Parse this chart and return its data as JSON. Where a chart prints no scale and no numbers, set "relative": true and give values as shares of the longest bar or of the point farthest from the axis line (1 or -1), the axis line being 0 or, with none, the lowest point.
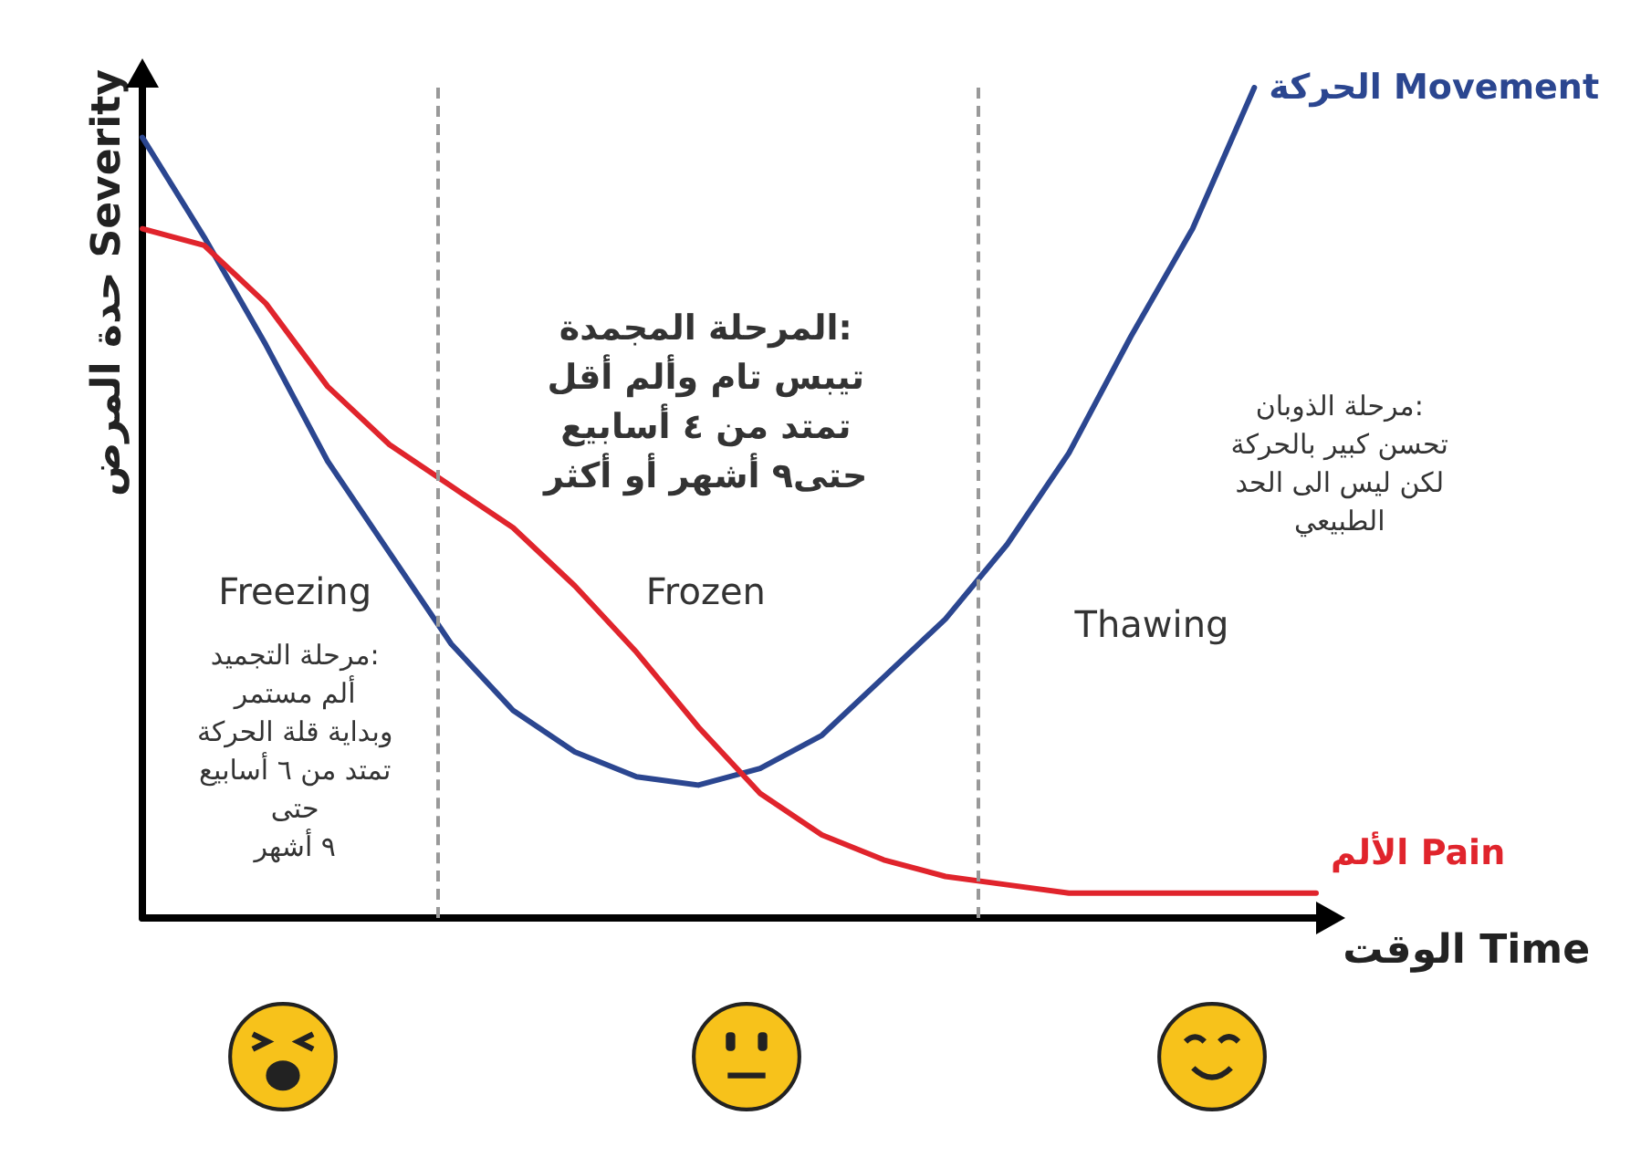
{
  "chart_data": {
    "type": "line",
    "relative": true,
    "xlabel": "الوقت Time",
    "ylabel": "حدة المرض Severity",
    "grid": false,
    "marker": "none",
    "line_style": "solid",
    "categories": [
      null,
      null,
      null,
      null,
      null,
      null,
      null,
      null,
      null,
      null,
      null,
      null,
      null,
      null,
      null,
      null,
      null,
      null,
      null,
      null
    ],
    "series": [
      {
        "name": "الحركة Movement",
        "color": "#2b4690",
        "values": [
          0.94,
          0.82,
          0.69,
          0.55,
          0.44,
          0.33,
          0.25,
          0.2,
          0.17,
          0.16,
          0.18,
          0.22,
          0.29,
          0.36,
          0.45,
          0.56,
          0.7,
          0.83,
          1.0,
          null
        ]
      },
      {
        "name": "الألم Pain",
        "color": "#e0242c",
        "values": [
          0.83,
          0.81,
          0.74,
          0.64,
          0.57,
          0.52,
          0.47,
          0.4,
          0.32,
          0.23,
          0.15,
          0.1,
          0.07,
          0.05,
          0.04,
          0.03,
          0.03,
          0.03,
          0.03,
          0.03
        ]
      }
    ],
    "annotations": [
      "Freezing",
      "مرحلة التجميد:\nألم مستمر\nوبداية قلة الحركة\nتمتد من ٦ أسابيع\nحتى\n٩ أشهر",
      "Frozen",
      "المرحلة المجمدة:\nتيبس تام وألم أقل\nتمتد من ٤ أسابيع\nحتى٩ أشهر أو أكثر",
      "Thawing",
      "مرحلة الذوبان:\nتحسن كبير بالحركة\nلكن ليس الى الحد\nالطبيعي"
    ]
  }
}
